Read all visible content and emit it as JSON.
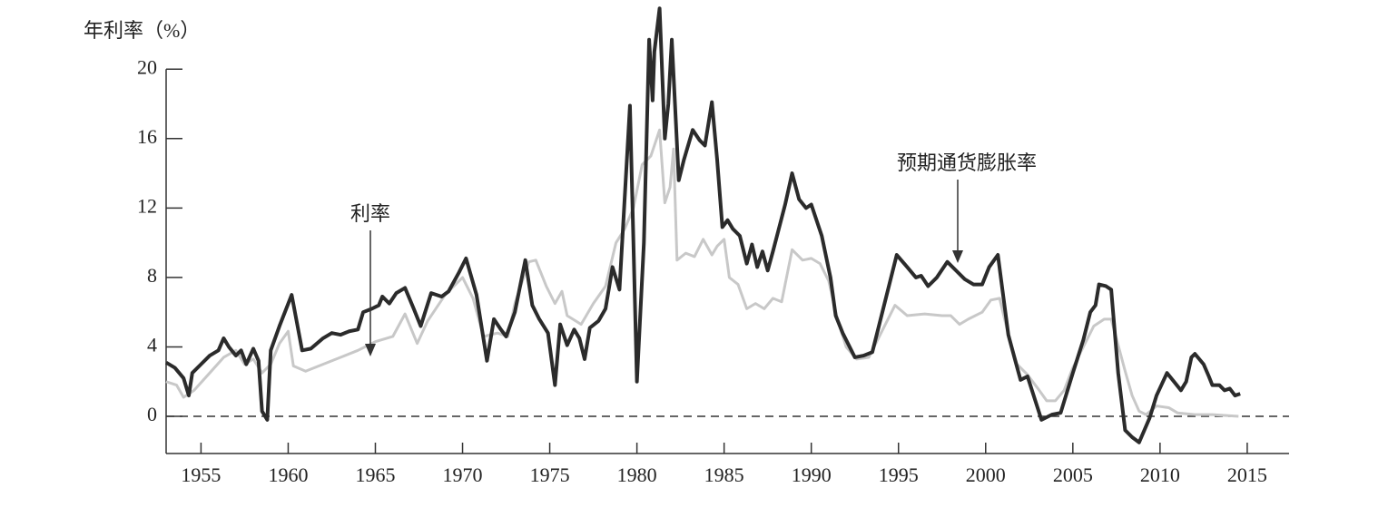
{
  "chart_data": {
    "type": "line",
    "y_label": "年利率（%）",
    "xlim": [
      1953,
      2017.4
    ],
    "ylim": [
      -2.14,
      23.2
    ],
    "xticks": [
      1955,
      1960,
      1965,
      1970,
      1975,
      1980,
      1985,
      1990,
      1995,
      2000,
      2005,
      2010,
      2015
    ],
    "yticks": [
      0,
      4,
      8,
      12,
      16,
      20
    ],
    "zero_line": true,
    "series": [
      {
        "name": "预期通货膨胀率",
        "color": "#2b2b2b",
        "x": [
          1953.0,
          1953.5,
          1954.0,
          1954.3,
          1954.5,
          1955.0,
          1955.5,
          1956.0,
          1956.3,
          1956.6,
          1957.0,
          1957.3,
          1957.6,
          1958.0,
          1958.3,
          1958.5,
          1958.8,
          1959.0,
          1959.5,
          1960.2,
          1960.8,
          1961.3,
          1962.0,
          1962.5,
          1963.0,
          1963.5,
          1964.0,
          1964.3,
          1964.8,
          1965.2,
          1965.4,
          1965.8,
          1966.2,
          1966.7,
          1967.2,
          1967.6,
          1968.2,
          1968.8,
          1969.2,
          1969.8,
          1970.2,
          1970.8,
          1971.4,
          1971.8,
          1972.2,
          1972.5,
          1973.0,
          1973.6,
          1974.0,
          1974.4,
          1974.9,
          1975.3,
          1975.6,
          1976.0,
          1976.4,
          1976.7,
          1977.0,
          1977.3,
          1977.8,
          1978.2,
          1978.6,
          1979.0,
          1979.6,
          1979.8,
          1980.0,
          1980.4,
          1980.7,
          1980.9,
          1981.0,
          1981.3,
          1981.6,
          1981.8,
          1982.0,
          1982.4,
          1982.7,
          1983.2,
          1983.6,
          1983.9,
          1984.3,
          1984.6,
          1984.9,
          1985.2,
          1985.5,
          1985.9,
          1986.3,
          1986.6,
          1986.9,
          1987.2,
          1987.5,
          1987.8,
          1988.5,
          1988.9,
          1989.3,
          1989.7,
          1990.0,
          1990.6,
          1991.1,
          1991.4,
          1991.8,
          1992.5,
          1993.0,
          1993.5,
          1994.2,
          1994.9,
          1995.5,
          1996.0,
          1996.3,
          1996.7,
          1997.2,
          1997.8,
          1998.3,
          1998.8,
          1999.3,
          1999.8,
          2000.2,
          2000.7,
          2001.3,
          2001.7,
          2002.0,
          2002.4,
          2003.2,
          2003.8,
          2004.3,
          2005.0,
          2005.6,
          2006.0,
          2006.3,
          2006.5,
          2006.9,
          2007.2,
          2007.6,
          2008.0,
          2008.4,
          2008.8,
          2009.4,
          2009.8,
          2010.4,
          2010.8,
          2011.2,
          2011.5,
          2011.8,
          2012.0,
          2012.5,
          2012.8,
          2013.0,
          2013.4,
          2013.7,
          2014.0,
          2014.3,
          2014.6
        ],
        "values": [
          3.1,
          2.8,
          2.2,
          1.2,
          2.5,
          3.0,
          3.5,
          3.8,
          4.5,
          4.0,
          3.5,
          3.8,
          3.0,
          3.9,
          3.2,
          0.3,
          -0.2,
          3.8,
          5.2,
          7.0,
          3.8,
          3.9,
          4.5,
          4.8,
          4.7,
          4.9,
          5.0,
          6.0,
          6.2,
          6.4,
          6.9,
          6.5,
          7.1,
          7.4,
          6.2,
          5.2,
          7.1,
          6.9,
          7.2,
          8.3,
          9.1,
          7.0,
          3.2,
          5.6,
          5.0,
          4.6,
          6.0,
          9.0,
          6.4,
          5.6,
          4.8,
          1.8,
          5.3,
          4.1,
          5.0,
          4.5,
          3.3,
          5.1,
          5.5,
          6.2,
          8.6,
          7.3,
          17.9,
          10.0,
          2.0,
          10.0,
          21.7,
          18.2,
          21.0,
          23.5,
          16.0,
          18.0,
          21.7,
          13.6,
          14.8,
          16.5,
          15.9,
          15.6,
          18.1,
          14.8,
          10.9,
          11.3,
          10.8,
          10.4,
          8.8,
          9.9,
          8.6,
          9.5,
          8.4,
          9.5,
          12.2,
          14.0,
          12.5,
          12.0,
          12.2,
          10.4,
          8.0,
          5.8,
          4.8,
          3.4,
          3.5,
          3.7,
          6.5,
          9.3,
          8.6,
          8.0,
          8.1,
          7.5,
          8.0,
          8.9,
          8.4,
          7.9,
          7.6,
          7.6,
          8.6,
          9.3,
          4.7,
          3.2,
          2.1,
          2.3,
          -0.2,
          0.1,
          0.2,
          2.5,
          4.4,
          6.0,
          6.4,
          7.6,
          7.5,
          7.3,
          2.5,
          -0.8,
          -1.2,
          -1.5,
          -0.1,
          1.2,
          2.5,
          2.0,
          1.5,
          2.0,
          3.4,
          3.6,
          3.0,
          2.3,
          1.8,
          1.8,
          1.5,
          1.6,
          1.2,
          1.3
        ]
      },
      {
        "name": "利率",
        "color": "#c8c8c8",
        "x": [
          1953.0,
          1953.6,
          1954.0,
          1954.6,
          1955.5,
          1956.3,
          1957.0,
          1957.5,
          1958.0,
          1958.5,
          1959.0,
          1959.5,
          1960.0,
          1960.3,
          1961.0,
          1962.0,
          1963.0,
          1964.0,
          1965.0,
          1966.0,
          1966.7,
          1967.4,
          1968.0,
          1969.0,
          1970.0,
          1970.6,
          1971.2,
          1972.0,
          1972.6,
          1973.0,
          1973.8,
          1974.2,
          1974.8,
          1975.3,
          1975.7,
          1976.0,
          1976.8,
          1977.5,
          1978.2,
          1978.8,
          1979.3,
          1979.8,
          1980.3,
          1980.8,
          1981.3,
          1981.6,
          1981.9,
          1982.1,
          1982.3,
          1982.8,
          1983.3,
          1983.8,
          1984.3,
          1984.6,
          1985.0,
          1985.3,
          1985.8,
          1986.3,
          1986.8,
          1987.3,
          1987.8,
          1988.3,
          1988.9,
          1989.5,
          1990.0,
          1990.5,
          1991.0,
          1991.5,
          1992.0,
          1992.6,
          1993.3,
          1994.0,
          1994.8,
          1995.5,
          1996.5,
          1997.5,
          1998.0,
          1998.5,
          1999.0,
          1999.8,
          2000.3,
          2000.8,
          2001.3,
          2001.8,
          2002.4,
          2003.0,
          2003.5,
          2004.0,
          2004.5,
          2005.0,
          2005.5,
          2006.2,
          2006.8,
          2007.2,
          2007.6,
          2008.0,
          2008.4,
          2008.8,
          2009.2,
          2009.8,
          2010.5,
          2011.0,
          2012.0,
          2013.0,
          2014.5
        ],
        "values": [
          2.0,
          1.8,
          1.1,
          1.5,
          2.5,
          3.4,
          3.8,
          3.0,
          3.3,
          2.5,
          3.0,
          4.2,
          4.9,
          2.9,
          2.6,
          3.0,
          3.4,
          3.8,
          4.3,
          4.6,
          5.9,
          4.2,
          5.5,
          7.0,
          8.0,
          6.8,
          4.6,
          4.8,
          4.6,
          6.5,
          8.9,
          9.0,
          7.5,
          6.5,
          7.2,
          5.8,
          5.3,
          6.5,
          7.5,
          10.0,
          10.8,
          12.0,
          14.5,
          15.0,
          16.5,
          12.3,
          13.2,
          15.4,
          9.0,
          9.4,
          9.2,
          10.2,
          9.3,
          9.8,
          10.2,
          8.0,
          7.6,
          6.2,
          6.5,
          6.2,
          6.8,
          6.6,
          9.6,
          9.0,
          9.1,
          8.8,
          7.8,
          5.6,
          4.0,
          3.3,
          3.4,
          4.8,
          6.4,
          5.8,
          5.9,
          5.8,
          5.8,
          5.3,
          5.6,
          6.0,
          6.7,
          6.8,
          4.7,
          3.0,
          2.4,
          1.6,
          0.9,
          0.9,
          1.5,
          2.8,
          3.8,
          5.2,
          5.6,
          5.6,
          4.1,
          2.6,
          1.2,
          0.3,
          0.1,
          0.6,
          0.5,
          0.2,
          0.1,
          0.1,
          0.0
        ]
      }
    ]
  }
}
